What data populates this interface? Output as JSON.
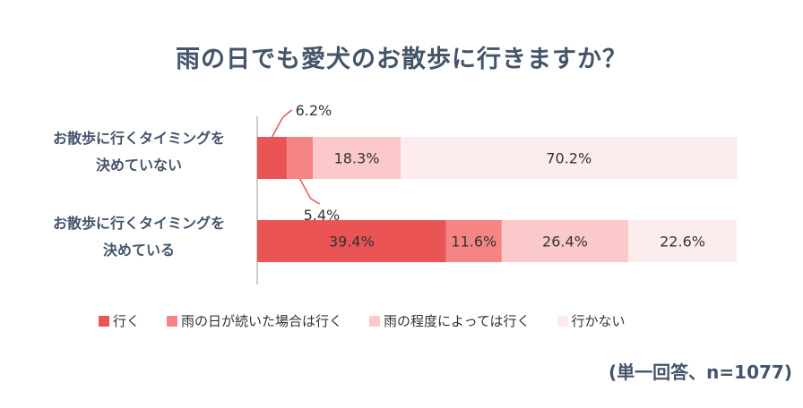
{
  "title": "雨の日でも愛犬のお散歩に行きますか？",
  "note": "(単一回答、n=1077)",
  "chart_data": {
    "type": "bar",
    "orientation": "horizontal",
    "stacked": true,
    "categories": [
      "お散歩に行くタイミングを\n決めていない",
      "お散歩に行くタイミングを\n決めている"
    ],
    "series": [
      {
        "name": "行く",
        "color": "#eb5455",
        "values": [
          6.2,
          39.4
        ]
      },
      {
        "name": "雨の日が続いた場合は行く",
        "color": "#f58485",
        "values": [
          5.4,
          11.6
        ]
      },
      {
        "name": "雨の程度によっては行く",
        "color": "#fbc9c9",
        "values": [
          18.3,
          26.4
        ]
      },
      {
        "name": "行かない",
        "color": "#fdeced",
        "values": [
          70.2,
          22.6
        ]
      }
    ],
    "value_labels": [
      [
        "6.2%",
        "5.4%",
        "18.3%",
        "70.2%"
      ],
      [
        "39.4%",
        "11.6%",
        "26.4%",
        "22.6%"
      ]
    ],
    "xlim": [
      0,
      100
    ]
  }
}
